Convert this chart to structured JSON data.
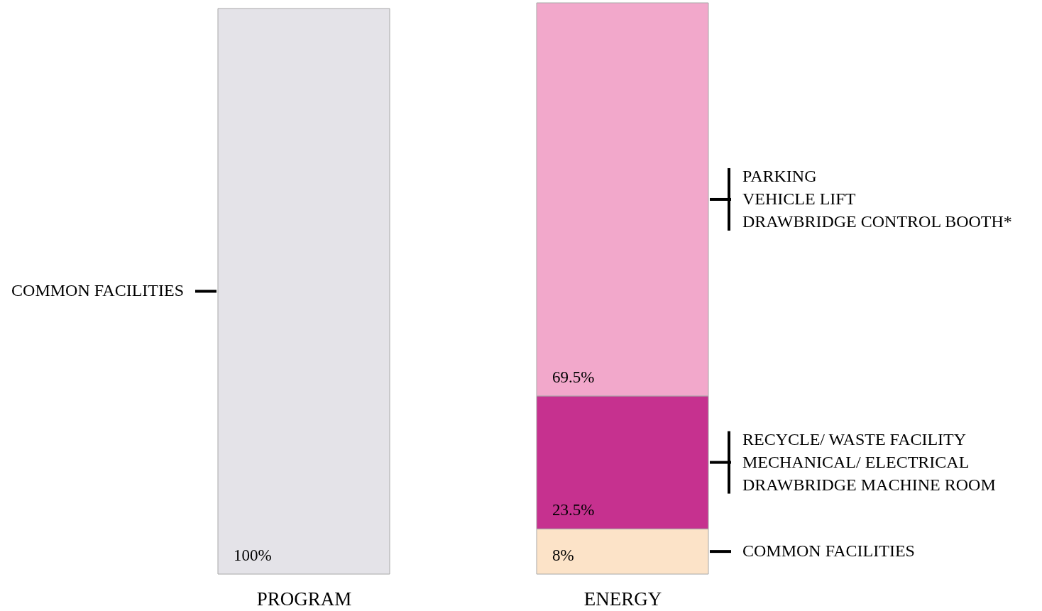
{
  "chart_data": {
    "type": "bar",
    "stacked": true,
    "categories": [
      "PROGRAM",
      "ENERGY"
    ],
    "series": [
      {
        "name": "COMMON FACILITIES",
        "colors": [
          "#e4e3e8",
          "#fce3c8"
        ],
        "values": [
          100,
          8
        ],
        "value_labels": [
          "100%",
          "8%"
        ]
      },
      {
        "name": "RECYCLE/ WASTE FACILITY\nMECHANICAL/ ELECTRICAL\nDRAWBRIDGE MACHINE ROOM",
        "color": "#c6318f",
        "values": [
          null,
          23.5
        ],
        "value_labels": [
          null,
          "23.5%"
        ]
      },
      {
        "name": "PARKING\nVEHICLE LIFT\nDRAWBRIDGE CONTROL BOOTH*",
        "color": "#f2a8cb",
        "values": [
          null,
          69.5
        ],
        "value_labels": [
          null,
          "69.5%"
        ]
      }
    ]
  }
}
